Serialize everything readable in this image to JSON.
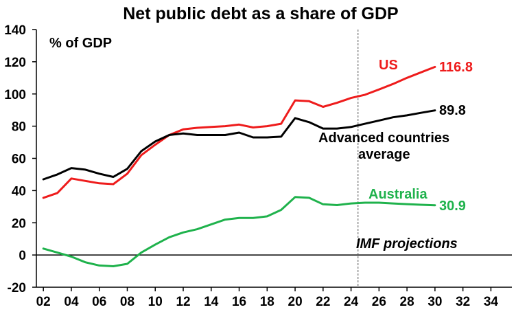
{
  "chart_data": {
    "type": "line",
    "title": "Net public debt as a share of GDP",
    "ylabel": "% of GDP",
    "xlabel": "",
    "ylim": [
      -20,
      140
    ],
    "yticks": [
      "140",
      "120",
      "100",
      "80",
      "60",
      "40",
      "20",
      "0",
      "-20"
    ],
    "xlim": [
      2001.5,
      2035.5
    ],
    "xticks": [
      "02",
      "04",
      "06",
      "08",
      "10",
      "12",
      "14",
      "16",
      "18",
      "20",
      "22",
      "24",
      "26",
      "28",
      "30",
      "32",
      "34"
    ],
    "projection_start": 2024.5,
    "projection_label": "IMF projections",
    "grid": false,
    "series": [
      {
        "name": "US",
        "color": "#ee1c1c",
        "end_label": "116.8",
        "x": [
          2002,
          2003,
          2004,
          2005,
          2006,
          2007,
          2008,
          2009,
          2010,
          2011,
          2012,
          2013,
          2014,
          2015,
          2016,
          2017,
          2018,
          2019,
          2020,
          2021,
          2022,
          2023,
          2024,
          2025,
          2026,
          2027,
          2028,
          2029,
          2030
        ],
        "values": [
          35.5,
          38.5,
          47.5,
          46,
          44.5,
          44,
          50.5,
          62,
          68.5,
          74.5,
          78,
          79,
          79.5,
          80,
          81,
          79.2,
          80,
          81.5,
          96,
          95.5,
          92,
          94.5,
          97.5,
          99.5,
          102.8,
          106.2,
          110,
          113.4,
          116.8
        ]
      },
      {
        "name": "Advanced countries average",
        "color": "#000000",
        "end_label": "89.8",
        "x": [
          2002,
          2003,
          2004,
          2005,
          2006,
          2007,
          2008,
          2009,
          2010,
          2011,
          2012,
          2013,
          2014,
          2015,
          2016,
          2017,
          2018,
          2019,
          2020,
          2021,
          2022,
          2023,
          2024,
          2025,
          2026,
          2027,
          2028,
          2029,
          2030
        ],
        "values": [
          47,
          50,
          54,
          53,
          50.5,
          48.5,
          53.5,
          64.5,
          70.5,
          74.5,
          75.5,
          74.5,
          74.5,
          74.5,
          76,
          73,
          73,
          73.5,
          85,
          82.5,
          78.5,
          78.5,
          79.5,
          81.5,
          83.5,
          85.5,
          86.7,
          88.3,
          89.8
        ]
      },
      {
        "name": "Australia",
        "color": "#1fb24c",
        "end_label": "30.9",
        "x": [
          2002,
          2003,
          2004,
          2005,
          2006,
          2007,
          2008,
          2009,
          2010,
          2011,
          2012,
          2013,
          2014,
          2015,
          2016,
          2017,
          2018,
          2019,
          2020,
          2021,
          2022,
          2023,
          2024,
          2025,
          2026,
          2027,
          2028,
          2029,
          2030
        ],
        "values": [
          4,
          1.5,
          -1,
          -4.5,
          -6.5,
          -7,
          -5.5,
          1.5,
          6.5,
          11,
          14,
          16,
          19,
          22,
          23,
          23,
          24,
          28,
          36,
          35.5,
          31.5,
          31,
          32,
          32.5,
          32.5,
          32,
          31.6,
          31.2,
          30.9
        ]
      }
    ],
    "annotations": {
      "us": "US",
      "adv_line1": "Advanced countries",
      "adv_line2": "average",
      "australia": "Australia"
    }
  }
}
